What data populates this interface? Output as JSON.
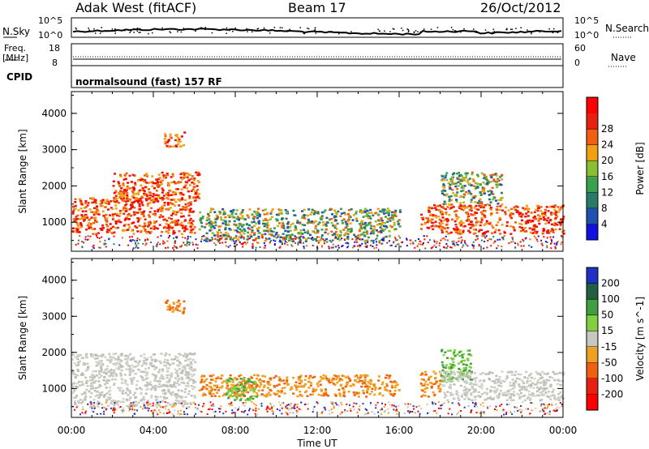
{
  "header": {
    "station": "Adak West (fitACF)",
    "beam": "Beam 17",
    "date": "26/Oct/2012"
  },
  "nsky_panel": {
    "left_label": "N.Sky",
    "right_label": "N.Search",
    "left_ticks": [
      "10^5",
      "10^0"
    ],
    "right_ticks": [
      "10^5",
      "10^0"
    ]
  },
  "freq_panel": {
    "left_label_1": "Freq.",
    "left_label_2": "[MHz]",
    "right_label": "Nave",
    "left_ticks": [
      "18",
      "8"
    ],
    "right_ticks": [
      "60",
      "0"
    ]
  },
  "cpid_panel": {
    "label": "CPID",
    "mode_text": "normalsound (fast) 157 RF"
  },
  "x_axis": {
    "title": "Time UT",
    "ticks": [
      "00:00",
      "04:00",
      "08:00",
      "12:00",
      "16:00",
      "20:00",
      "00:00"
    ]
  },
  "chart_data": [
    {
      "type": "heatmap",
      "title": "Power",
      "ylabel": "Slant Range [km]",
      "xlabel": "",
      "xlim": [
        0,
        24
      ],
      "ylim": [
        200,
        4600
      ],
      "yticks": [
        "1000",
        "2000",
        "3000",
        "4000"
      ],
      "colorbar": {
        "label": "Power [dB]",
        "ticks": [
          "4",
          "8",
          "12",
          "16",
          "20",
          "24",
          "28"
        ],
        "colors": [
          "#1010e0",
          "#2050b0",
          "#2a7a6a",
          "#3aa050",
          "#88c030",
          "#f0a010",
          "#f06010",
          "#e82010",
          "#ff0000"
        ]
      },
      "regions": [
        {
          "t0": 0.0,
          "t1": 6.0,
          "r0": 700,
          "r1": 1700,
          "level": "high"
        },
        {
          "t0": 2.0,
          "t1": 6.2,
          "r0": 1600,
          "r1": 2400,
          "level": "high"
        },
        {
          "t0": 4.5,
          "t1": 5.5,
          "r0": 3100,
          "r1": 3500,
          "level": "high"
        },
        {
          "t0": 6.2,
          "t1": 16.0,
          "r0": 800,
          "r1": 1400,
          "level": "medium"
        },
        {
          "t0": 6.5,
          "t1": 15.5,
          "r0": 500,
          "r1": 800,
          "level": "medium"
        },
        {
          "t0": 17.0,
          "t1": 18.0,
          "r0": 800,
          "r1": 1500,
          "level": "high"
        },
        {
          "t0": 18.0,
          "t1": 24.0,
          "r0": 700,
          "r1": 1500,
          "level": "high"
        },
        {
          "t0": 18.0,
          "t1": 21.0,
          "r0": 1500,
          "r1": 2400,
          "level": "medium"
        }
      ]
    },
    {
      "type": "heatmap",
      "title": "Velocity",
      "ylabel": "Slant Range [km]",
      "xlabel": "Time UT",
      "xlim": [
        0,
        24
      ],
      "ylim": [
        200,
        4600
      ],
      "yticks": [
        "1000",
        "2000",
        "3000",
        "4000"
      ],
      "colorbar": {
        "label": "Velocity [m s^-1]",
        "ticks": [
          "200",
          "100",
          "50",
          "15",
          "-15",
          "-50",
          "-100",
          "-200"
        ],
        "colors": [
          "#2030c0",
          "#206040",
          "#40a040",
          "#80d040",
          "#c8c8c0",
          "#f0a020",
          "#f06010",
          "#e82010",
          "#ff0000"
        ]
      },
      "regions": [
        {
          "t0": 0.0,
          "t1": 6.0,
          "r0": 500,
          "r1": 2000,
          "level": "ground"
        },
        {
          "t0": 4.5,
          "t1": 5.5,
          "r0": 3100,
          "r1": 3500,
          "level": "negative"
        },
        {
          "t0": 6.2,
          "t1": 16.0,
          "r0": 800,
          "r1": 1400,
          "level": "negative"
        },
        {
          "t0": 7.5,
          "t1": 9.0,
          "r0": 700,
          "r1": 1300,
          "level": "positive"
        },
        {
          "t0": 17.0,
          "t1": 18.0,
          "r0": 800,
          "r1": 1500,
          "level": "negative"
        },
        {
          "t0": 18.0,
          "t1": 19.5,
          "r0": 1200,
          "r1": 2100,
          "level": "positive"
        },
        {
          "t0": 18.0,
          "t1": 24.0,
          "r0": 700,
          "r1": 1500,
          "level": "ground"
        }
      ]
    }
  ]
}
